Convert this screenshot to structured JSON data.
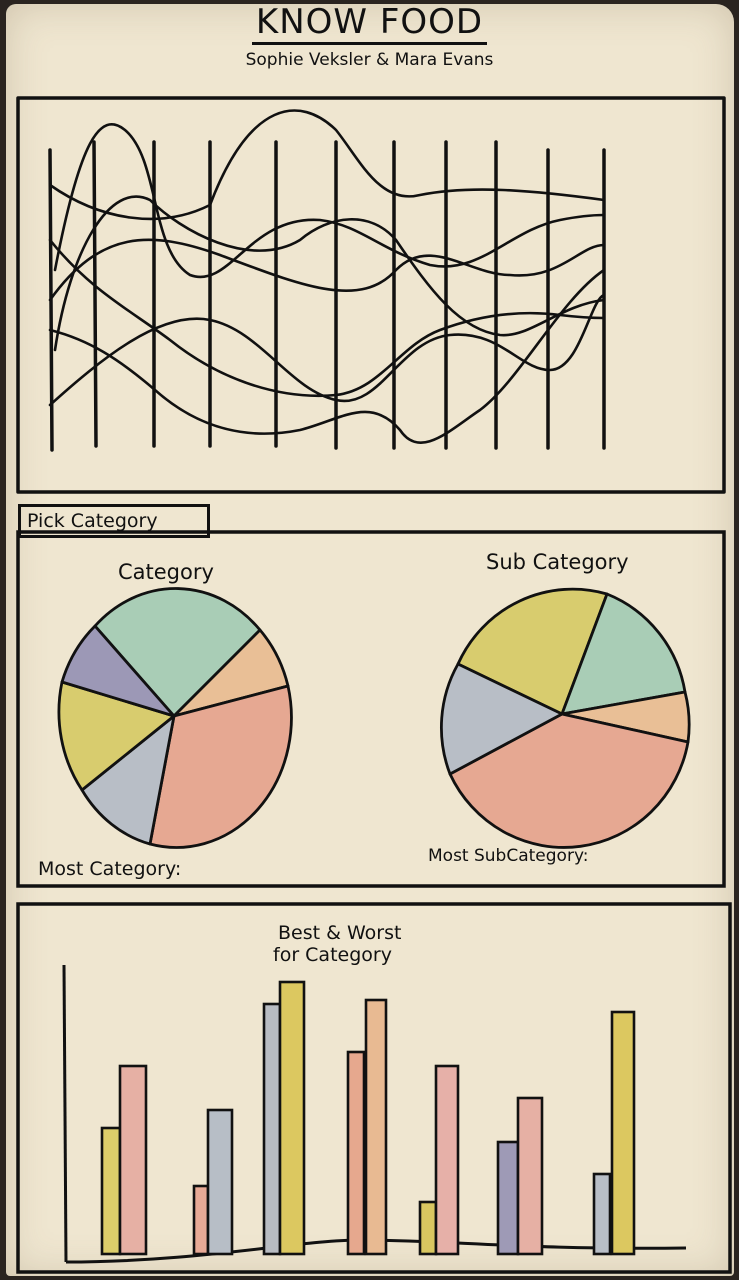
{
  "header": {
    "title": "KNOW FOOD",
    "authors": "Sophie Veksler & Mara Evans"
  },
  "controls": {
    "pick_category_label": "Pick Category"
  },
  "pies": {
    "category": {
      "title": "Category",
      "footer": "Most Category:",
      "slice_colors": [
        "#a9cdb6",
        "#e9bf96",
        "#e6a892",
        "#b8bec6",
        "#d8cc6e",
        "#9c98b6"
      ]
    },
    "sub_category": {
      "title": "Sub Category",
      "footer": "Most SubCategory:",
      "slice_colors": [
        "#d8cc6e",
        "#a9cdb6",
        "#e9bf96",
        "#e6a892",
        "#b8bec6"
      ]
    }
  },
  "bars": {
    "title_line1": "Best & Worst",
    "title_line2": "for Category",
    "pair_colors": [
      [
        "#dccd6a",
        "#e6b0a4"
      ],
      [
        "#e8aa96",
        "#b7bec6"
      ],
      [
        "#b8bcc2",
        "#dcc860"
      ],
      [
        "#e6a88e",
        "#e8ba92"
      ],
      [
        "#d8c660",
        "#e6b0a8"
      ],
      [
        "#9e9ab6",
        "#e6b0a4"
      ],
      [
        "#b8bec6",
        "#dcc860"
      ]
    ]
  }
}
